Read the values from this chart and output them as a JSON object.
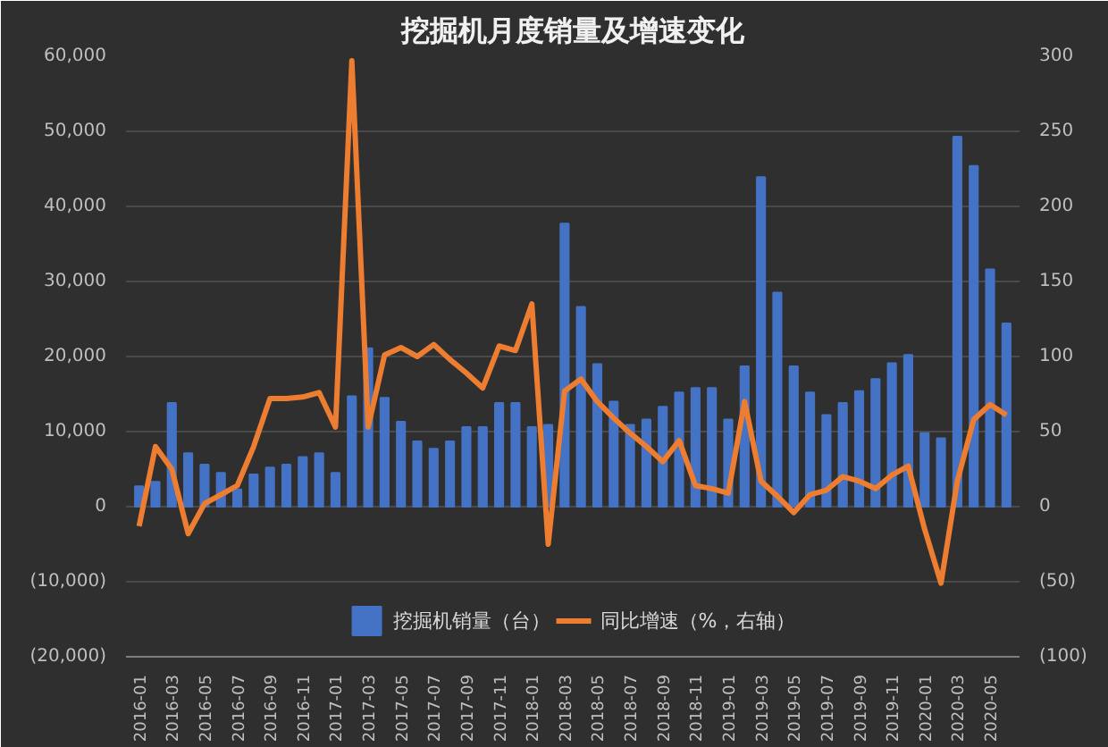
{
  "chart_data": {
    "type": "bar",
    "title": "挖掘机月度销量及增速变化",
    "categories": [
      "2016-01",
      null,
      "2016-03",
      null,
      "2016-05",
      null,
      "2016-07",
      null,
      "2016-09",
      null,
      "2016-11",
      null,
      "2017-01",
      null,
      "2017-03",
      null,
      "2017-05",
      null,
      "2017-07",
      null,
      "2017-09",
      null,
      "2017-11",
      null,
      "2018-01",
      null,
      "2018-03",
      null,
      "2018-05",
      null,
      "2018-07",
      null,
      "2018-09",
      null,
      "2018-11",
      null,
      "2019-01",
      null,
      "2019-03",
      null,
      "2019-05",
      null,
      "2019-07",
      null,
      "2019-09",
      null,
      "2019-11",
      null,
      "2020-01",
      null,
      "2020-03",
      null,
      "2020-05",
      null
    ],
    "series": [
      {
        "name": "挖掘机销量（台）",
        "color": "#4472c4",
        "values": [
          2700,
          3300,
          13800,
          7100,
          5600,
          4500,
          2300,
          4300,
          5200,
          5600,
          6600,
          7100,
          4500,
          14700,
          21100,
          14500,
          11300,
          8700,
          7700,
          8700,
          10600,
          10600,
          13800,
          13800,
          10600,
          10900,
          37700,
          26600,
          19000,
          14000,
          10900,
          11600,
          13300,
          15200,
          15800,
          15800,
          11600,
          18700,
          43900,
          28500,
          18700,
          15200,
          12200,
          13800,
          15400,
          17000,
          19100,
          20200,
          9800,
          9100,
          49300,
          45400,
          31600,
          24400
        ]
      },
      {
        "name": "同比增速（%，右轴）",
        "type": "line",
        "axis": "y2",
        "color": "#ed7d31",
        "values": [
          -13,
          40,
          25,
          -18,
          2,
          8,
          14,
          40,
          72,
          72,
          73,
          76,
          53,
          297,
          53,
          101,
          106,
          100,
          108,
          98,
          89,
          79,
          107,
          104,
          135,
          -25,
          77,
          85,
          70,
          59,
          49,
          40,
          30,
          44,
          14,
          12,
          9,
          70,
          17,
          7,
          -4,
          8,
          11,
          20,
          17,
          12,
          21,
          27,
          -15,
          -51,
          17,
          58,
          68,
          61
        ]
      }
    ],
    "ylim": [
      -20000,
      60000
    ],
    "yticks": [
      {
        "value": -20000,
        "label": "(20,000)"
      },
      {
        "value": -10000,
        "label": "(10,000)"
      },
      {
        "value": 0,
        "label": "0"
      },
      {
        "value": 10000,
        "label": "10,000"
      },
      {
        "value": 20000,
        "label": "20,000"
      },
      {
        "value": 30000,
        "label": "30,000"
      },
      {
        "value": 40000,
        "label": "40,000"
      },
      {
        "value": 50000,
        "label": "50,000"
      },
      {
        "value": 60000,
        "label": "60,000"
      }
    ],
    "y2lim": [
      -100,
      300
    ],
    "y2ticks": [
      {
        "value": -100,
        "label": "(100)"
      },
      {
        "value": -50,
        "label": "(50)"
      },
      0,
      50,
      100,
      150,
      200,
      250,
      300
    ],
    "grid": "y",
    "legend": "bottom",
    "line_style": "solid",
    "marker": "none"
  }
}
